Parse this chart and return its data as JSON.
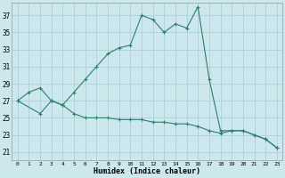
{
  "xlabel": "Humidex (Indice chaleur)",
  "background_color": "#cde8ec",
  "grid_color": "#b0d4da",
  "line_color": "#2e7d6e",
  "x_ticks": [
    0,
    1,
    2,
    3,
    4,
    5,
    6,
    7,
    8,
    9,
    10,
    11,
    12,
    13,
    14,
    15,
    16,
    17,
    18,
    19,
    20,
    21,
    22,
    23
  ],
  "y_ticks": [
    21,
    23,
    25,
    27,
    29,
    31,
    33,
    35,
    37
  ],
  "ylim": [
    20.0,
    38.5
  ],
  "xlim": [
    -0.5,
    23.5
  ],
  "line1_x": [
    0,
    1,
    2,
    3,
    4,
    5,
    6,
    7,
    8,
    9,
    10,
    11,
    12,
    13,
    14,
    15,
    16,
    17,
    18,
    19,
    20,
    21,
    22,
    23
  ],
  "line1_y": [
    27.0,
    28.0,
    28.5,
    27.0,
    26.5,
    28.0,
    29.5,
    31.0,
    32.5,
    33.2,
    33.5,
    37.0,
    36.5,
    35.0,
    36.0,
    35.5,
    38.0,
    29.5,
    23.5,
    23.5,
    23.5,
    23.0,
    22.5,
    21.5
  ],
  "line2_x": [
    0,
    2,
    3,
    4,
    5,
    6,
    7,
    8,
    9,
    10,
    11,
    12,
    13,
    14,
    15,
    16,
    17,
    18,
    19,
    20,
    21,
    22,
    23
  ],
  "line2_y": [
    27.0,
    25.5,
    27.0,
    26.5,
    25.5,
    25.0,
    25.0,
    25.0,
    24.8,
    24.8,
    24.8,
    24.5,
    24.5,
    24.3,
    24.3,
    24.0,
    23.5,
    23.2,
    23.5,
    23.5,
    23.0,
    22.5,
    21.5
  ]
}
